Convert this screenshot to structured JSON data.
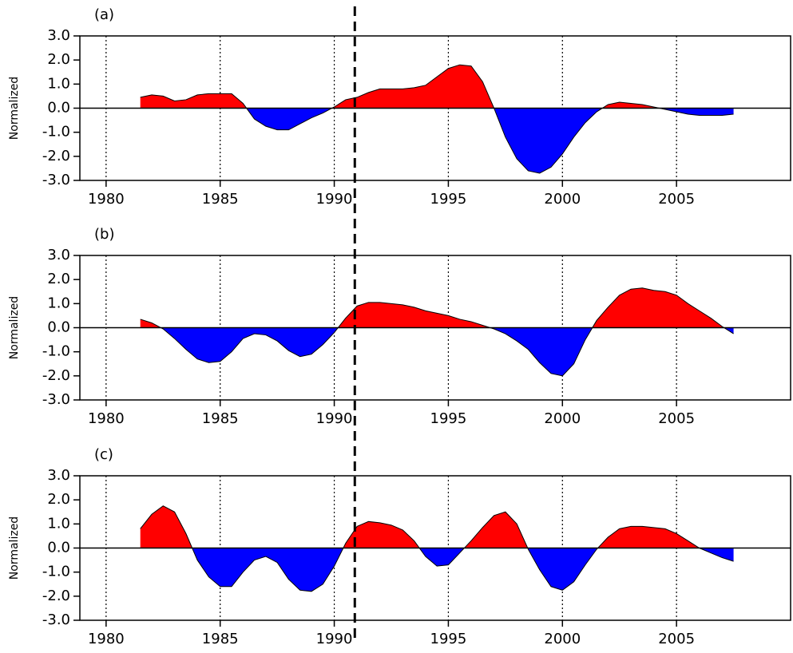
{
  "chart_data": [
    {
      "type": "area",
      "panel_label": "(a)",
      "y_label": "Normalized",
      "x": [
        1981.5,
        1982,
        1982.5,
        1983,
        1983.5,
        1984,
        1984.5,
        1985,
        1985.5,
        1986,
        1986.5,
        1987,
        1987.5,
        1988,
        1988.5,
        1989,
        1989.5,
        1990,
        1990.5,
        1991,
        1991.5,
        1992,
        1992.5,
        1993,
        1993.5,
        1994,
        1994.5,
        1995,
        1995.5,
        1996,
        1996.5,
        1997,
        1997.5,
        1998,
        1998.5,
        1999,
        1999.5,
        2000,
        2000.5,
        2001,
        2001.5,
        2002,
        2002.5,
        2003,
        2003.5,
        2004,
        2004.5,
        2005,
        2005.5,
        2006,
        2006.5,
        2007,
        2007.5
      ],
      "values": [
        0.45,
        0.55,
        0.5,
        0.3,
        0.35,
        0.55,
        0.6,
        0.6,
        0.6,
        0.2,
        -0.45,
        -0.75,
        -0.9,
        -0.9,
        -0.65,
        -0.4,
        -0.2,
        0.05,
        0.35,
        0.45,
        0.65,
        0.8,
        0.8,
        0.8,
        0.85,
        0.95,
        1.3,
        1.65,
        1.8,
        1.75,
        1.1,
        0.0,
        -1.2,
        -2.1,
        -2.6,
        -2.7,
        -2.45,
        -1.9,
        -1.2,
        -0.6,
        -0.15,
        0.15,
        0.25,
        0.2,
        0.15,
        0.05,
        -0.05,
        -0.15,
        -0.25,
        -0.3,
        -0.3,
        -0.3,
        -0.25
      ],
      "color_positive": "#ff0000",
      "color_negative": "#0000ff",
      "xlim": [
        1978.85,
        2010
      ],
      "xticks": [
        1980,
        1985,
        1990,
        1995,
        2000,
        2005
      ],
      "ylim": [
        -3,
        3
      ],
      "yticks": [
        {
          "value": 3,
          "label": "3.0"
        },
        {
          "value": 2,
          "label": "2.0"
        },
        {
          "value": 1,
          "label": "1.0"
        },
        {
          "value": 0,
          "label": "0.0"
        },
        {
          "value": -1,
          "label": "-1.0"
        },
        {
          "value": -2,
          "label": "-2.0"
        },
        {
          "value": -3,
          "label": "-3.0"
        }
      ],
      "grid": "x-dotted"
    },
    {
      "type": "area",
      "panel_label": "(b)",
      "y_label": "Normalized",
      "x": [
        1981.5,
        1982,
        1982.5,
        1983,
        1983.5,
        1984,
        1984.5,
        1985,
        1985.5,
        1986,
        1986.5,
        1987,
        1987.5,
        1988,
        1988.5,
        1989,
        1989.5,
        1990,
        1990.5,
        1991,
        1991.5,
        1992,
        1992.5,
        1993,
        1993.5,
        1994,
        1994.5,
        1995,
        1995.5,
        1996,
        1996.5,
        1997,
        1997.5,
        1998,
        1998.5,
        1999,
        1999.5,
        2000,
        2000.5,
        2001,
        2001.5,
        2002,
        2002.5,
        2003,
        2003.5,
        2004,
        2004.5,
        2005,
        2005.5,
        2006,
        2006.5,
        2007,
        2007.5
      ],
      "values": [
        0.35,
        0.2,
        -0.05,
        -0.45,
        -0.9,
        -1.3,
        -1.45,
        -1.4,
        -1.0,
        -0.45,
        -0.25,
        -0.3,
        -0.55,
        -0.95,
        -1.2,
        -1.1,
        -0.7,
        -0.2,
        0.4,
        0.9,
        1.05,
        1.05,
        1.0,
        0.95,
        0.85,
        0.7,
        0.6,
        0.5,
        0.35,
        0.25,
        0.1,
        -0.05,
        -0.25,
        -0.55,
        -0.9,
        -1.45,
        -1.9,
        -2.0,
        -1.5,
        -0.5,
        0.3,
        0.85,
        1.35,
        1.6,
        1.65,
        1.55,
        1.5,
        1.35,
        1.0,
        0.7,
        0.4,
        0.05,
        -0.25
      ],
      "color_positive": "#ff0000",
      "color_negative": "#0000ff",
      "xlim": [
        1978.85,
        2010
      ],
      "xticks": [
        1980,
        1985,
        1990,
        1995,
        2000,
        2005
      ],
      "ylim": [
        -3,
        3
      ],
      "yticks": [
        {
          "value": 3,
          "label": "3.0"
        },
        {
          "value": 2,
          "label": "2.0"
        },
        {
          "value": 1,
          "label": "1.0"
        },
        {
          "value": 0,
          "label": "0.0"
        },
        {
          "value": -1,
          "label": "-1.0"
        },
        {
          "value": -2,
          "label": "-2.0"
        },
        {
          "value": -3,
          "label": "-3.0"
        }
      ],
      "grid": "x-dotted"
    },
    {
      "type": "area",
      "panel_label": "(c)",
      "y_label": "Normalized",
      "x": [
        1981.5,
        1982,
        1982.5,
        1983,
        1983.5,
        1984,
        1984.5,
        1985,
        1985.5,
        1986,
        1986.5,
        1987,
        1987.5,
        1988,
        1988.5,
        1989,
        1989.5,
        1990,
        1990.5,
        1991,
        1991.5,
        1992,
        1992.5,
        1993,
        1993.5,
        1994,
        1994.5,
        1995,
        1995.5,
        1996,
        1996.5,
        1997,
        1997.5,
        1998,
        1998.5,
        1999,
        1999.5,
        2000,
        2000.5,
        2001,
        2001.5,
        2002,
        2002.5,
        2003,
        2003.5,
        2004,
        2004.5,
        2005,
        2005.5,
        2006,
        2006.5,
        2007,
        2007.5
      ],
      "values": [
        0.8,
        1.4,
        1.75,
        1.5,
        0.6,
        -0.5,
        -1.2,
        -1.6,
        -1.6,
        -1.0,
        -0.5,
        -0.35,
        -0.6,
        -1.3,
        -1.75,
        -1.8,
        -1.5,
        -0.75,
        0.2,
        0.9,
        1.1,
        1.05,
        0.95,
        0.75,
        0.3,
        -0.35,
        -0.75,
        -0.7,
        -0.2,
        0.3,
        0.85,
        1.35,
        1.5,
        1.0,
        -0.05,
        -0.9,
        -1.6,
        -1.75,
        -1.4,
        -0.7,
        -0.05,
        0.45,
        0.8,
        0.9,
        0.9,
        0.85,
        0.8,
        0.6,
        0.3,
        0.0,
        -0.2,
        -0.4,
        -0.55
      ],
      "color_positive": "#ff0000",
      "color_negative": "#0000ff",
      "xlim": [
        1978.85,
        2010
      ],
      "xticks": [
        1980,
        1985,
        1990,
        1995,
        2000,
        2005
      ],
      "ylim": [
        -3,
        3
      ],
      "yticks": [
        {
          "value": 3,
          "label": "3.0"
        },
        {
          "value": 2,
          "label": "2.0"
        },
        {
          "value": 1,
          "label": "1.0"
        },
        {
          "value": 0,
          "label": "0.0"
        },
        {
          "value": -1,
          "label": "-1.0"
        },
        {
          "value": -2,
          "label": "-2.0"
        },
        {
          "value": -3,
          "label": "-3.0"
        }
      ],
      "grid": "x-dotted"
    }
  ],
  "reference_line_x": 1990.9
}
